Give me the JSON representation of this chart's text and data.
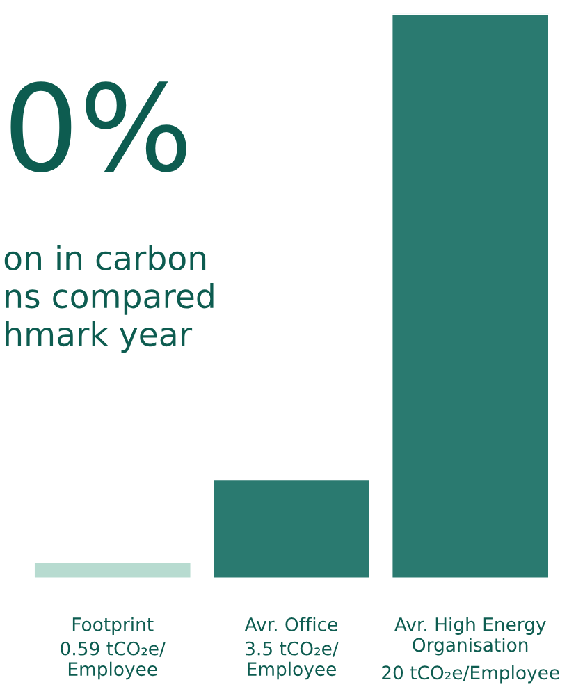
{
  "chart_data": {
    "type": "bar",
    "categories": [
      "Footprint",
      "Avr. Office",
      "Avr. High Energy\nOrganisation"
    ],
    "values": [
      0.59,
      3.5,
      20
    ],
    "value_labels": [
      "0.59 tCO₂e/\nEmployee",
      "3.5 tCO₂e/\nEmployee",
      "20 tCO₂e/Employee"
    ],
    "colors": [
      "#b7dbd0",
      "#2a7a70",
      "#2a7a70"
    ],
    "annotations": [
      "0%",
      "on in carbon\nns compared\nhmark year"
    ],
    "tick_labels": "x"
  }
}
